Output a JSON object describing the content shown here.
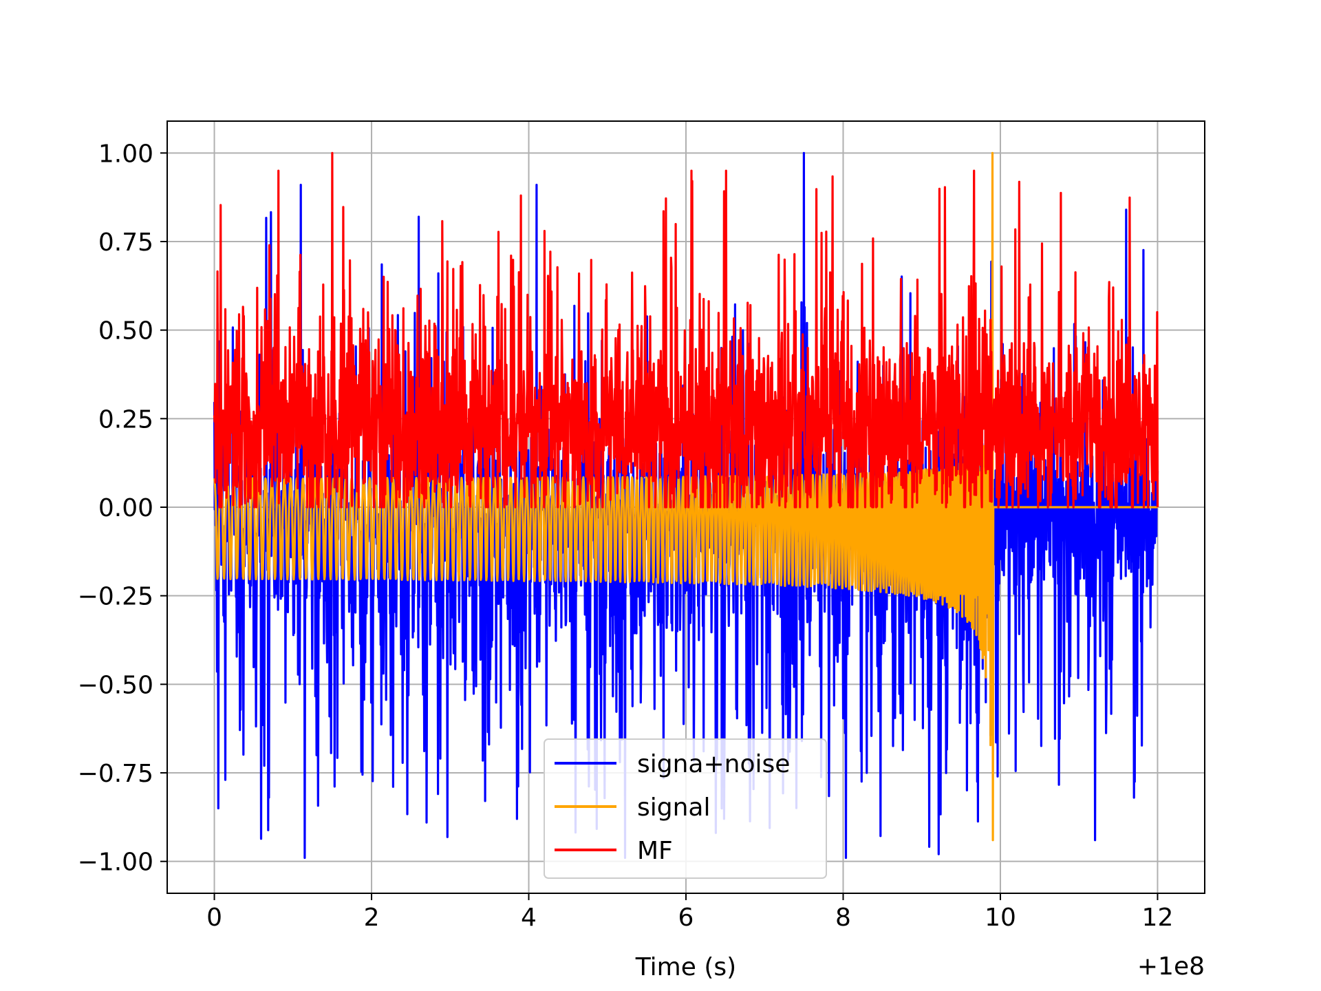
{
  "chart_data": {
    "type": "line",
    "title": "",
    "xlabel": "Time (s)",
    "ylabel": "",
    "x_offset_label": "+1e8",
    "xlim": [
      -0.6,
      12.6
    ],
    "ylim": [
      -1.09,
      1.09
    ],
    "xticks": [
      0,
      2,
      4,
      6,
      8,
      10,
      12
    ],
    "xtick_labels": [
      "0",
      "2",
      "4",
      "6",
      "8",
      "10",
      "12"
    ],
    "yticks": [
      1.0,
      0.75,
      0.5,
      0.25,
      0.0,
      -0.25,
      -0.5,
      -0.75,
      -1.0
    ],
    "ytick_labels": [
      "1.00",
      "0.75",
      "0.50",
      "0.25",
      "0.00",
      "−0.25",
      "−0.50",
      "−0.75",
      "−1.00"
    ],
    "grid": true,
    "legend_position": "lower-center",
    "series": [
      {
        "name": "signa+noise",
        "color": "#0000ff",
        "x_range": [
          0,
          12
        ],
        "max": 1.0,
        "min": -0.99,
        "peaks": [
          [
            0.05,
            -0.85
          ],
          [
            1.1,
            0.91
          ],
          [
            1.15,
            -0.99
          ],
          [
            1.3,
            -0.7
          ],
          [
            2.6,
            0.82
          ],
          [
            2.7,
            -0.89
          ],
          [
            3.85,
            -0.88
          ],
          [
            4.1,
            0.91
          ],
          [
            7.5,
            1.0
          ],
          [
            8.3,
            -0.75
          ],
          [
            11.6,
            0.84
          ],
          [
            11.7,
            -0.82
          ]
        ]
      },
      {
        "name": "signal",
        "color": "#ffa500",
        "x_range": [
          0,
          12
        ],
        "max": 1.0,
        "min": -0.94,
        "chirp_end": 9.9,
        "peaks": [
          [
            9.9,
            1.0
          ],
          [
            9.9,
            -0.94
          ]
        ]
      },
      {
        "name": "MF",
        "color": "#ff0000",
        "x_range": [
          0,
          12
        ],
        "max": 1.0,
        "min": 0.0,
        "peaks": [
          [
            1.5,
            1.0
          ],
          [
            3.9,
            0.88
          ],
          [
            4.2,
            0.78
          ]
        ]
      }
    ]
  }
}
